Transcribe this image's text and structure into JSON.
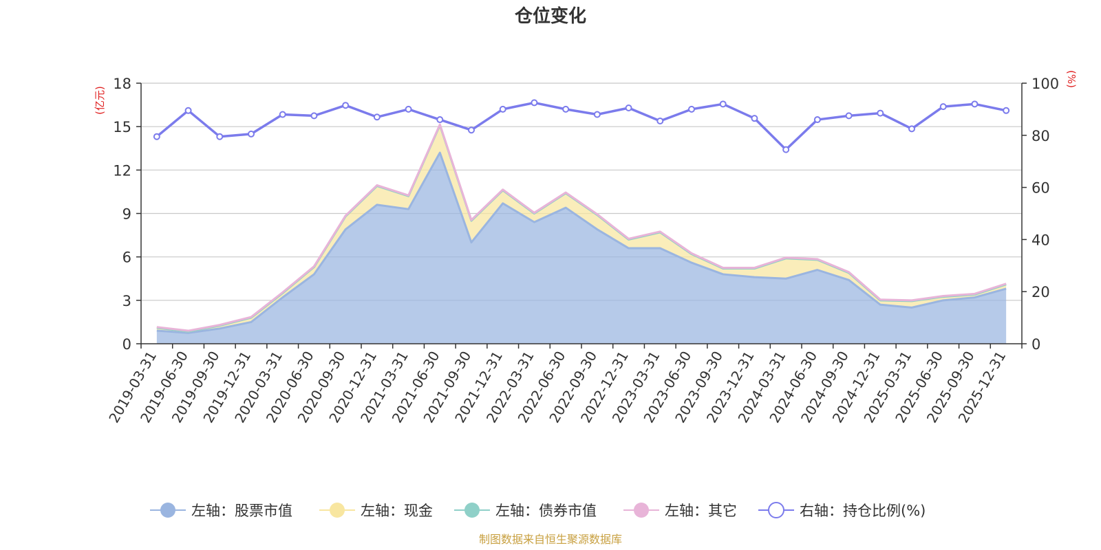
{
  "chart_data": {
    "type": "area",
    "title": "仓位变化",
    "left_unit": "(亿元)",
    "right_unit": "(%)",
    "left_ylim": [
      0,
      18
    ],
    "left_ticks": [
      0,
      3,
      6,
      9,
      12,
      15,
      18
    ],
    "right_ylim": [
      0,
      100
    ],
    "right_ticks": [
      0,
      20,
      40,
      60,
      80,
      100
    ],
    "categories": [
      "2019-03-31",
      "2019-06-30",
      "2019-09-30",
      "2019-12-31",
      "2020-03-31",
      "2020-06-30",
      "2020-09-30",
      "2020-12-31",
      "2021-03-31",
      "2021-06-30",
      "2021-09-30",
      "2021-12-31",
      "2022-03-31",
      "2022-06-30",
      "2022-09-30",
      "2022-12-31",
      "2023-03-31",
      "2023-06-30",
      "2023-09-30",
      "2023-12-31",
      "2024-03-31",
      "2024-06-30",
      "2024-09-30",
      "2024-12-31",
      "2025-03-31",
      "2025-06-30",
      "2025-09-30",
      "2025-12-31"
    ],
    "series": [
      {
        "name": "左轴：股票市值",
        "axis": "left",
        "color": "#9ab5e0",
        "values": [
          0.9,
          0.75,
          1.05,
          1.5,
          3.2,
          4.8,
          7.9,
          9.6,
          9.3,
          13.2,
          7.0,
          9.7,
          8.4,
          9.4,
          7.9,
          6.6,
          6.6,
          5.6,
          4.8,
          4.6,
          4.5,
          5.1,
          4.4,
          2.7,
          2.5,
          3.0,
          3.2,
          3.8
        ]
      },
      {
        "name": "左轴：现金",
        "axis": "left",
        "color": "#f8e6a0",
        "values": [
          0.2,
          0.1,
          0.2,
          0.3,
          0.3,
          0.5,
          0.9,
          1.3,
          0.9,
          1.9,
          1.5,
          0.9,
          0.6,
          1.0,
          1.0,
          0.6,
          1.1,
          0.6,
          0.4,
          0.6,
          1.4,
          0.7,
          0.5,
          0.3,
          0.45,
          0.25,
          0.2,
          0.3
        ]
      },
      {
        "name": "左轴：债券市值",
        "axis": "left",
        "color": "#8fd0c8",
        "values": [
          0,
          0,
          0,
          0,
          0,
          0,
          0,
          0,
          0,
          0,
          0,
          0,
          0,
          0,
          0,
          0,
          0,
          0,
          0,
          0,
          0,
          0,
          0,
          0,
          0,
          0,
          0,
          0
        ]
      },
      {
        "name": "左轴：其它",
        "axis": "left",
        "color": "#e8b4d8",
        "values": [
          0.05,
          0.05,
          0.05,
          0.05,
          0.05,
          0.05,
          0.05,
          0.05,
          0.05,
          0.05,
          0.05,
          0.05,
          0.05,
          0.05,
          0.05,
          0.05,
          0.05,
          0.05,
          0.05,
          0.05,
          0.05,
          0.05,
          0.05,
          0.05,
          0.05,
          0.05,
          0.05,
          0.05
        ]
      },
      {
        "name": "右轴：持仓比例(%)",
        "axis": "right",
        "color": "#7b7bec",
        "values": [
          79.5,
          89.5,
          79.5,
          80.5,
          88,
          87.5,
          91.5,
          87,
          90,
          86,
          82,
          90,
          92.5,
          90,
          88,
          90.5,
          85.5,
          90,
          92,
          86.5,
          74.5,
          86,
          87.5,
          88.5,
          82.5,
          91,
          92,
          89.5
        ]
      }
    ],
    "source": "制图数据来自恒生聚源数据库"
  }
}
